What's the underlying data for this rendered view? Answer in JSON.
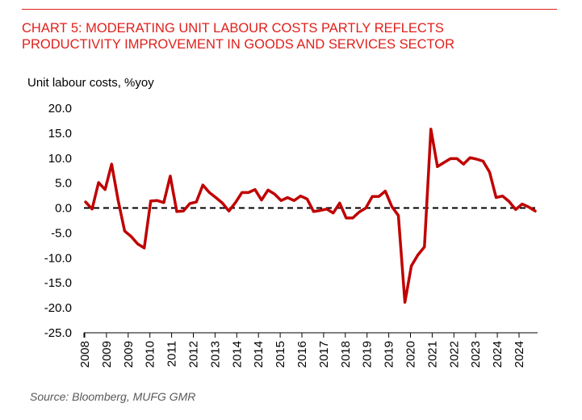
{
  "header": {
    "title_line1": "CHART 5: MODERATING UNIT LABOUR COSTS PARTLY REFLECTS",
    "title_line2": "PRODUCTIVITY IMPROVEMENT IN GOODS AND SERVICES SECTOR"
  },
  "source": "Source: Bloomberg, MUFG GMR",
  "colors": {
    "accent": "#e0201b",
    "series": "#c00000",
    "zero_line": "#000000"
  },
  "chart_data": {
    "type": "line",
    "title": "CHART 5: MODERATING UNIT LABOUR COSTS PARTLY REFLECTS PRODUCTIVITY IMPROVEMENT IN GOODS AND SERVICES SECTOR",
    "ylabel": "Unit labour costs, %yoy",
    "xlabel": "",
    "ylim": [
      -25,
      20
    ],
    "yticks": [
      20,
      15,
      10,
      5,
      0,
      -5,
      -10,
      -15,
      -20,
      -25
    ],
    "ytick_labels": [
      "20.0",
      "15.0",
      "10.0",
      "5.0",
      "0.0",
      "-5.0",
      "-10.0",
      "-15.0",
      "-20.0",
      "-25.0"
    ],
    "xtick_labels": [
      "2008",
      "2009",
      "2009",
      "2010",
      "2011",
      "2012",
      "2013",
      "2014",
      "2014",
      "2015",
      "2016",
      "2017",
      "2018",
      "2019",
      "2019",
      "2020",
      "2021",
      "2022",
      "2023",
      "2024",
      "2024"
    ],
    "grid": false,
    "reference_line": {
      "y": 0,
      "style": "dashed"
    },
    "series": [
      {
        "name": "Unit labour costs, %yoy",
        "values": [
          1.2,
          -0.2,
          5.1,
          3.7,
          8.8,
          1.5,
          -4.6,
          -5.7,
          -7.2,
          -8.0,
          1.4,
          1.5,
          1.1,
          6.4,
          -0.7,
          -0.6,
          0.9,
          1.2,
          4.6,
          3.1,
          2.1,
          1.0,
          -0.6,
          1.1,
          3.1,
          3.1,
          3.7,
          1.6,
          3.6,
          2.8,
          1.5,
          2.1,
          1.5,
          2.4,
          1.8,
          -0.7,
          -0.5,
          -0.2,
          -1.0,
          1.0,
          -2.0,
          -2.0,
          -0.8,
          0.0,
          2.3,
          2.3,
          3.4,
          0.3,
          -1.5,
          -18.9,
          -11.6,
          -9.4,
          -7.8,
          15.8,
          8.3,
          9.1,
          9.9,
          9.9,
          8.8,
          10.1,
          9.8,
          9.4,
          7.2,
          2.1,
          2.4,
          1.3,
          -0.3,
          0.8,
          0.2,
          -0.6
        ]
      }
    ]
  }
}
